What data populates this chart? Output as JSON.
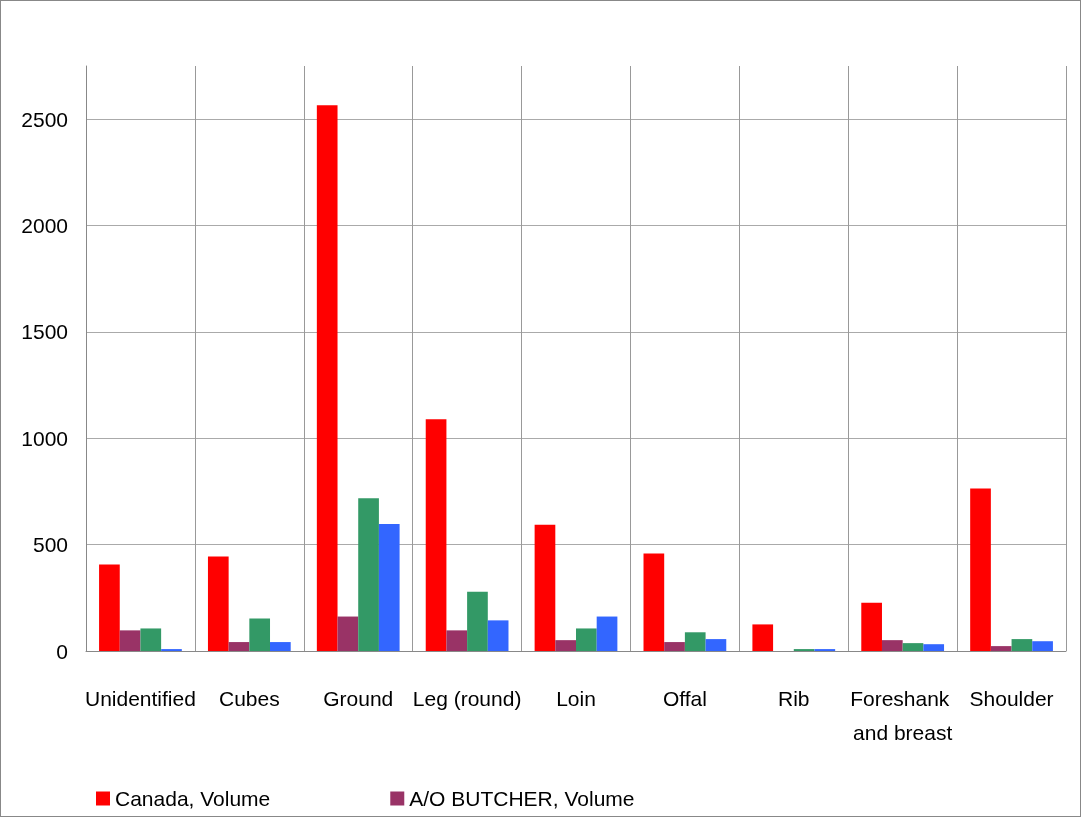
{
  "chart_data": {
    "type": "bar",
    "categories": [
      "Unidentified",
      "Cubes",
      "Ground",
      "Leg (round)",
      "Loin",
      "Offal",
      "Rib",
      "Foreshank and breast",
      "Shoulder"
    ],
    "series": [
      {
        "name": "Canada, Volume",
        "color": "#ff0000",
        "values": [
          407,
          444,
          2565,
          1090,
          593,
          458,
          125,
          227,
          764
        ]
      },
      {
        "name": "A/O BUTCHER, Volume",
        "color": "#993366",
        "values": [
          97,
          42,
          162,
          97,
          51,
          42,
          0,
          51,
          23
        ]
      },
      {
        "color": "#339966",
        "values": [
          106,
          153,
          718,
          278,
          106,
          88,
          9,
          37,
          56
        ]
      },
      {
        "color": "#3366ff",
        "values": [
          9,
          42,
          597,
          144,
          162,
          56,
          9,
          32,
          46
        ]
      }
    ],
    "ylim": [
      0,
      2750
    ],
    "yticks": [
      0,
      500,
      1000,
      1500,
      2000,
      2500
    ],
    "grid": true,
    "legend": "bottom"
  }
}
